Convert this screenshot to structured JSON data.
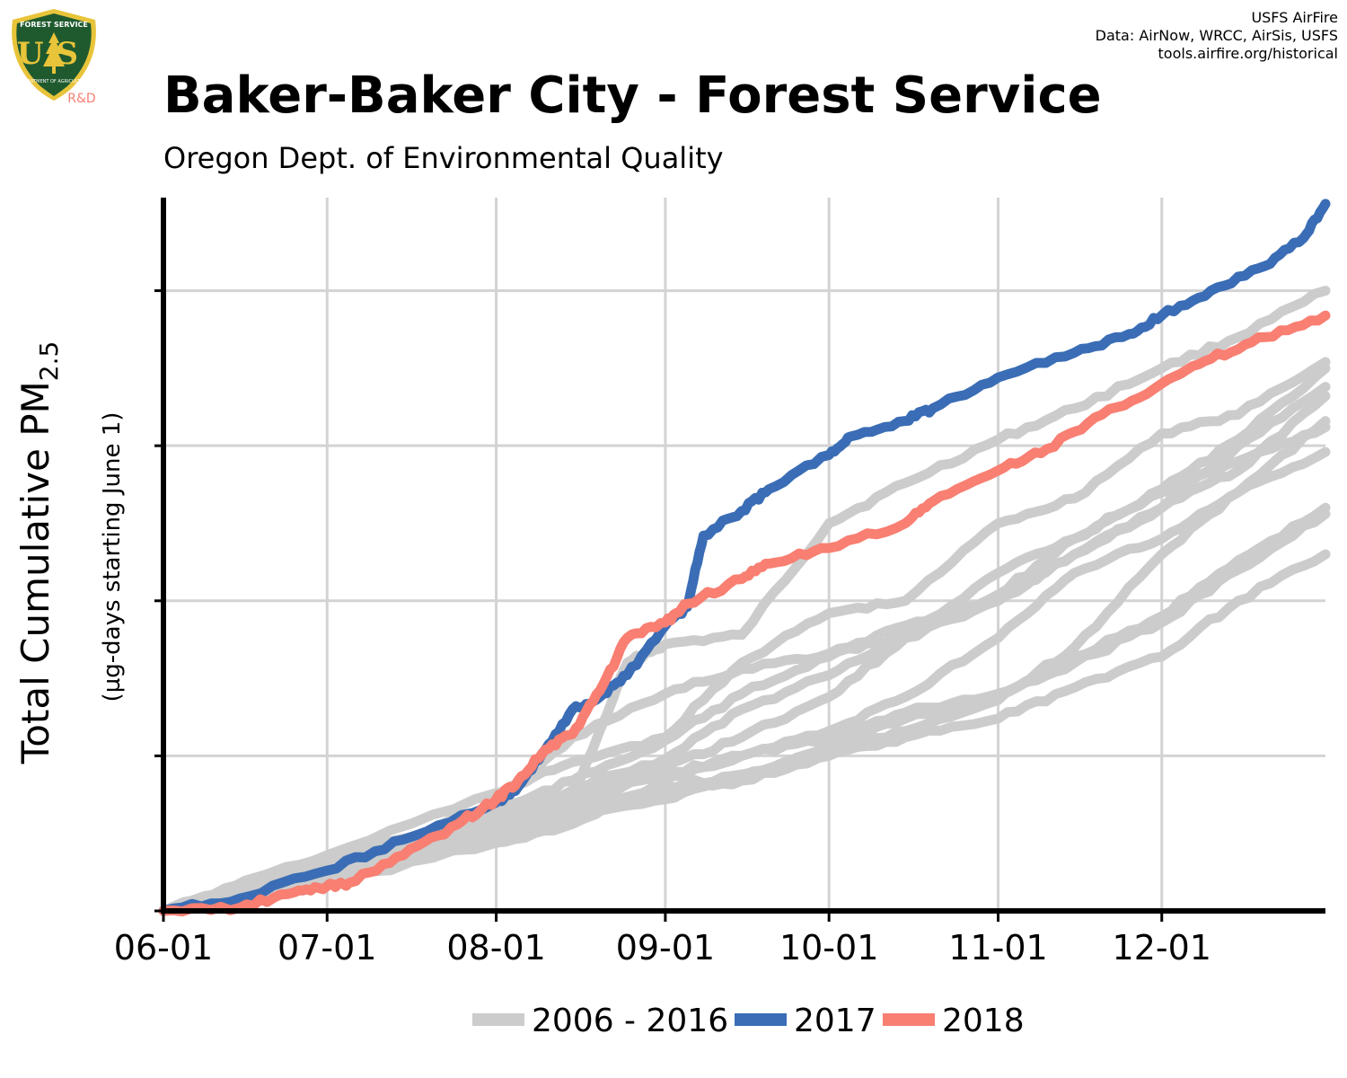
{
  "logo": {
    "text_top": "FOREST SERVICE",
    "text_main": "US",
    "text_bottom": "DEPARTMENT OF AGRICULTURE",
    "badge": "R&D",
    "shield_color": "#1f5a2e",
    "rim_color": "#e8c43a"
  },
  "credits": {
    "line1": "USFS AirFire",
    "line2": "Data: AirNow, WRCC, AirSis, USFS",
    "line3": "tools.airfire.org/historical"
  },
  "chart_data": {
    "type": "line",
    "title": "Baker-Baker City - Forest Service",
    "subtitle": "Oregon Dept. of Environmental Quality",
    "ylabel_main": "Total Cumulative PM",
    "ylabel_sub": "2.5",
    "ylabel_note": "(µg-days starting June 1)",
    "xlim": [
      "2000-06-01",
      "2000-12-31"
    ],
    "ylim": [
      0,
      2300
    ],
    "y_ticks": [
      0,
      500,
      1000,
      1500,
      2000
    ],
    "y_tick_labels_shown": false,
    "x_ticks": [
      "06-01",
      "07-01",
      "08-01",
      "09-01",
      "10-01",
      "11-01",
      "12-01"
    ],
    "grid": true,
    "legend_position": "bottom",
    "series": [
      {
        "name": "2006 - 2016",
        "color": "#cccccc",
        "lines": [
          [
            [
              "06-01",
              0
            ],
            [
              "07-01",
              175
            ],
            [
              "08-01",
              250
            ],
            [
              "08-15",
              360
            ],
            [
              "08-25",
              800
            ],
            [
              "09-01",
              860
            ],
            [
              "09-15",
              890
            ],
            [
              "10-01",
              1250
            ],
            [
              "10-15",
              1380
            ],
            [
              "11-01",
              1520
            ],
            [
              "11-15",
              1620
            ],
            [
              "12-01",
              1750
            ],
            [
              "12-15",
              1850
            ],
            [
              "12-31",
              2000
            ]
          ],
          [
            [
              "06-01",
              0
            ],
            [
              "07-01",
              180
            ],
            [
              "08-01",
              380
            ],
            [
              "08-15",
              480
            ],
            [
              "09-01",
              560
            ],
            [
              "09-15",
              800
            ],
            [
              "10-01",
              960
            ],
            [
              "10-15",
              1000
            ],
            [
              "11-01",
              1250
            ],
            [
              "11-15",
              1330
            ],
            [
              "12-01",
              1540
            ],
            [
              "12-15",
              1600
            ],
            [
              "12-31",
              1770
            ]
          ],
          [
            [
              "06-01",
              0
            ],
            [
              "07-01",
              150
            ],
            [
              "08-01",
              340
            ],
            [
              "08-15",
              560
            ],
            [
              "09-01",
              700
            ],
            [
              "09-15",
              780
            ],
            [
              "10-01",
              830
            ],
            [
              "10-15",
              920
            ],
            [
              "11-01",
              1000
            ],
            [
              "11-15",
              1150
            ],
            [
              "12-01",
              1300
            ],
            [
              "12-15",
              1420
            ],
            [
              "12-31",
              1660
            ]
          ],
          [
            [
              "06-01",
              0
            ],
            [
              "07-01",
              140
            ],
            [
              "08-01",
              320
            ],
            [
              "08-15",
              420
            ],
            [
              "09-01",
              550
            ],
            [
              "09-15",
              700
            ],
            [
              "10-01",
              820
            ],
            [
              "10-15",
              890
            ],
            [
              "11-01",
              1090
            ],
            [
              "11-15",
              1200
            ],
            [
              "12-01",
              1360
            ],
            [
              "12-15",
              1520
            ],
            [
              "12-31",
              1750
            ]
          ],
          [
            [
              "06-01",
              0
            ],
            [
              "07-01",
              130
            ],
            [
              "08-01",
              300
            ],
            [
              "08-15",
              370
            ],
            [
              "09-01",
              460
            ],
            [
              "09-15",
              560
            ],
            [
              "10-01",
              690
            ],
            [
              "10-15",
              880
            ],
            [
              "11-01",
              1000
            ],
            [
              "11-15",
              1150
            ],
            [
              "12-01",
              1300
            ],
            [
              "12-15",
              1500
            ],
            [
              "12-31",
              1690
            ]
          ],
          [
            [
              "06-01",
              0
            ],
            [
              "07-01",
              120
            ],
            [
              "08-01",
              280
            ],
            [
              "08-15",
              360
            ],
            [
              "09-01",
              440
            ],
            [
              "09-15",
              500
            ],
            [
              "10-01",
              580
            ],
            [
              "10-15",
              690
            ],
            [
              "11-01",
              880
            ],
            [
              "11-15",
              1090
            ],
            [
              "12-01",
              1200
            ],
            [
              "12-15",
              1350
            ],
            [
              "12-31",
              1580
            ]
          ],
          [
            [
              "06-01",
              0
            ],
            [
              "07-01",
              110
            ],
            [
              "08-01",
              260
            ],
            [
              "08-15",
              340
            ],
            [
              "09-01",
              400
            ],
            [
              "09-15",
              440
            ],
            [
              "10-01",
              520
            ],
            [
              "10-15",
              580
            ],
            [
              "11-01",
              680
            ],
            [
              "11-15",
              850
            ],
            [
              "12-01",
              1150
            ],
            [
              "12-15",
              1350
            ],
            [
              "12-31",
              1480
            ]
          ],
          [
            [
              "06-01",
              0
            ],
            [
              "07-01",
              100
            ],
            [
              "08-01",
              240
            ],
            [
              "08-15",
              320
            ],
            [
              "09-01",
              380
            ],
            [
              "09-15",
              420
            ],
            [
              "10-01",
              500
            ],
            [
              "10-15",
              560
            ],
            [
              "11-01",
              620
            ],
            [
              "11-15",
              720
            ],
            [
              "12-01",
              820
            ],
            [
              "12-15",
              1000
            ],
            [
              "12-31",
              1150
            ]
          ],
          [
            [
              "06-01",
              0
            ],
            [
              "07-01",
              100
            ],
            [
              "08-01",
              230
            ],
            [
              "08-15",
              300
            ],
            [
              "09-01",
              360
            ],
            [
              "09-15",
              430
            ],
            [
              "10-01",
              530
            ],
            [
              "10-15",
              620
            ],
            [
              "11-01",
              700
            ],
            [
              "11-15",
              800
            ],
            [
              "12-01",
              930
            ],
            [
              "12-15",
              1100
            ],
            [
              "12-31",
              1280
            ]
          ],
          [
            [
              "06-01",
              0
            ],
            [
              "07-01",
              90
            ],
            [
              "08-01",
              220
            ],
            [
              "08-15",
              280
            ],
            [
              "09-01",
              420
            ],
            [
              "09-15",
              500
            ],
            [
              "10-01",
              560
            ],
            [
              "10-15",
              640
            ],
            [
              "11-01",
              700
            ],
            [
              "11-15",
              820
            ],
            [
              "12-01",
              950
            ],
            [
              "12-15",
              1130
            ],
            [
              "12-31",
              1300
            ]
          ],
          [
            [
              "06-01",
              0
            ],
            [
              "07-01",
              160
            ],
            [
              "08-01",
              310
            ],
            [
              "08-15",
              390
            ],
            [
              "09-01",
              490
            ],
            [
              "09-15",
              650
            ],
            [
              "10-01",
              760
            ],
            [
              "10-15",
              890
            ],
            [
              "11-01",
              1020
            ],
            [
              "11-15",
              1200
            ],
            [
              "12-01",
              1350
            ],
            [
              "12-15",
              1450
            ],
            [
              "12-31",
              1560
            ]
          ]
        ]
      },
      {
        "name": "2017",
        "color": "#3a6db5",
        "points": [
          [
            "06-01",
            0
          ],
          [
            "06-15",
            40
          ],
          [
            "07-01",
            130
          ],
          [
            "07-15",
            230
          ],
          [
            "08-01",
            350
          ],
          [
            "08-05",
            400
          ],
          [
            "08-10",
            520
          ],
          [
            "08-15",
            650
          ],
          [
            "08-20",
            690
          ],
          [
            "08-25",
            760
          ],
          [
            "09-01",
            920
          ],
          [
            "09-05",
            980
          ],
          [
            "09-08",
            1210
          ],
          [
            "09-15",
            1290
          ],
          [
            "09-20",
            1360
          ],
          [
            "10-01",
            1470
          ],
          [
            "10-05",
            1530
          ],
          [
            "10-15",
            1580
          ],
          [
            "10-20",
            1620
          ],
          [
            "11-01",
            1720
          ],
          [
            "11-15",
            1800
          ],
          [
            "11-25",
            1860
          ],
          [
            "12-01",
            1920
          ],
          [
            "12-10",
            2000
          ],
          [
            "12-20",
            2080
          ],
          [
            "12-27",
            2170
          ],
          [
            "12-31",
            2280
          ]
        ]
      },
      {
        "name": "2018",
        "color": "#f87f72",
        "points": [
          [
            "06-01",
            0
          ],
          [
            "06-15",
            10
          ],
          [
            "06-25",
            60
          ],
          [
            "07-01",
            80
          ],
          [
            "07-05",
            90
          ],
          [
            "07-15",
            180
          ],
          [
            "07-25",
            280
          ],
          [
            "08-01",
            360
          ],
          [
            "08-05",
            420
          ],
          [
            "08-10",
            520
          ],
          [
            "08-15",
            570
          ],
          [
            "08-20",
            710
          ],
          [
            "08-25",
            880
          ],
          [
            "09-01",
            930
          ],
          [
            "09-05",
            990
          ],
          [
            "09-15",
            1070
          ],
          [
            "09-20",
            1120
          ],
          [
            "10-01",
            1170
          ],
          [
            "10-15",
            1250
          ],
          [
            "10-20",
            1320
          ],
          [
            "11-01",
            1420
          ],
          [
            "11-10",
            1490
          ],
          [
            "11-20",
            1600
          ],
          [
            "12-01",
            1700
          ],
          [
            "12-10",
            1780
          ],
          [
            "12-20",
            1850
          ],
          [
            "12-31",
            1920
          ]
        ]
      }
    ]
  }
}
